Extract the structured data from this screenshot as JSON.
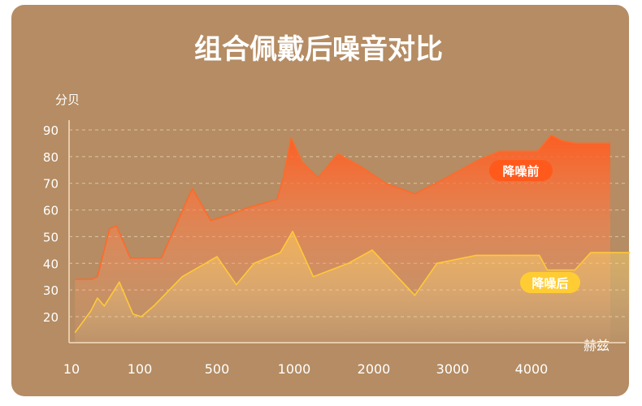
{
  "chart_data": {
    "type": "area",
    "title": "组合佩戴后噪音对比",
    "ylabel": "分贝",
    "xlabel": "赫兹",
    "ylim": [
      10,
      95
    ],
    "yticks": [
      20,
      30,
      40,
      50,
      60,
      70,
      80,
      90
    ],
    "xticks": [
      "10",
      "100",
      "500",
      "1000",
      "2000",
      "3000",
      "4000"
    ],
    "grid": true,
    "series": [
      {
        "name": "降噪前",
        "color": "#ff6a2a",
        "points": [
          [
            0.05,
            34
          ],
          [
            0.3,
            34
          ],
          [
            0.38,
            35
          ],
          [
            0.56,
            53
          ],
          [
            0.66,
            54
          ],
          [
            0.86,
            42
          ],
          [
            1.0,
            42
          ],
          [
            1.28,
            42
          ],
          [
            1.48,
            55
          ],
          [
            1.68,
            68
          ],
          [
            1.92,
            56
          ],
          [
            2.14,
            58
          ],
          [
            2.42,
            61
          ],
          [
            2.78,
            64
          ],
          [
            2.86,
            72
          ],
          [
            2.96,
            87
          ],
          [
            3.1,
            78
          ],
          [
            3.3,
            72
          ],
          [
            3.55,
            81
          ],
          [
            3.85,
            76
          ],
          [
            4.15,
            70
          ],
          [
            4.52,
            66
          ],
          [
            4.85,
            71
          ],
          [
            5.35,
            79
          ],
          [
            5.6,
            82
          ],
          [
            5.95,
            82
          ],
          [
            6.08,
            82
          ],
          [
            6.25,
            88
          ],
          [
            6.38,
            86
          ],
          [
            6.55,
            85
          ],
          [
            7.0,
            85
          ]
        ]
      },
      {
        "name": "降噪后",
        "color": "#ffc93a",
        "points": [
          [
            0.05,
            14
          ],
          [
            0.28,
            22
          ],
          [
            0.38,
            27
          ],
          [
            0.48,
            24
          ],
          [
            0.7,
            33
          ],
          [
            0.9,
            21
          ],
          [
            1.02,
            20
          ],
          [
            1.18,
            24
          ],
          [
            1.55,
            35
          ],
          [
            2.0,
            42.5
          ],
          [
            2.25,
            32
          ],
          [
            2.48,
            40
          ],
          [
            2.82,
            44
          ],
          [
            2.98,
            52
          ],
          [
            3.24,
            35
          ],
          [
            3.68,
            40
          ],
          [
            3.98,
            45
          ],
          [
            4.52,
            28
          ],
          [
            4.8,
            40
          ],
          [
            5.3,
            43
          ],
          [
            5.5,
            43
          ],
          [
            5.98,
            43
          ],
          [
            6.1,
            43
          ],
          [
            6.2,
            37.5
          ],
          [
            6.55,
            37.5
          ],
          [
            6.75,
            44
          ],
          [
            7.25,
            44
          ]
        ]
      }
    ]
  }
}
